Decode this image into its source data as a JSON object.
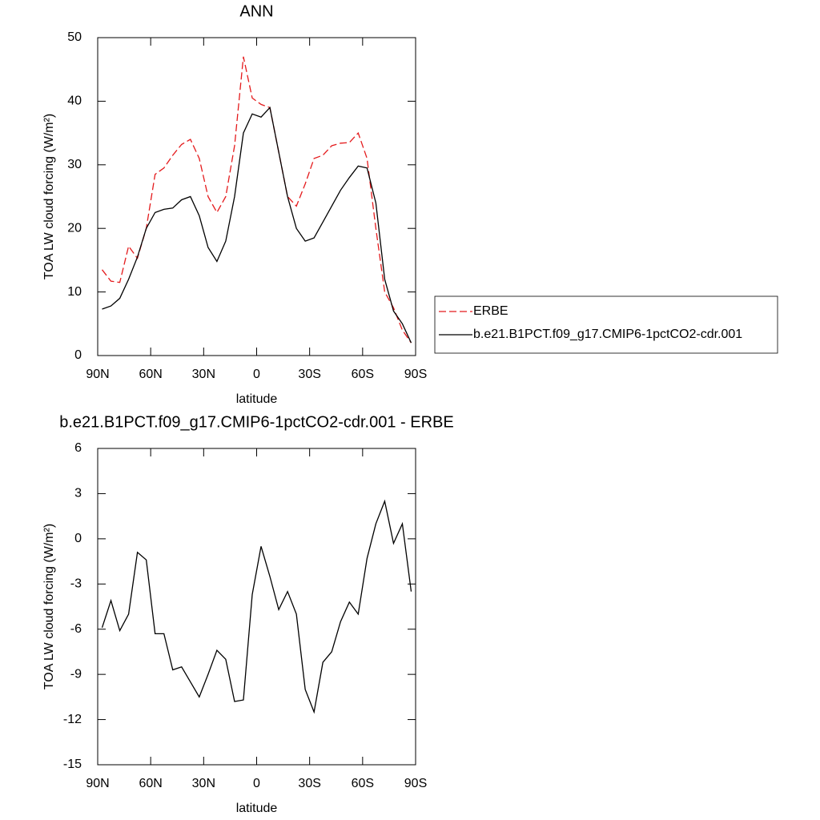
{
  "chart_data": [
    {
      "type": "line",
      "title": "ANN",
      "xlabel": "latitude",
      "ylabel": "TOA LW cloud forcing (W/m²)",
      "x": [
        87.5,
        82.5,
        77.5,
        72.5,
        67.5,
        62.5,
        57.5,
        52.5,
        47.5,
        42.5,
        37.5,
        32.5,
        27.5,
        22.5,
        17.5,
        12.5,
        7.5,
        2.5,
        -2.5,
        -7.5,
        -12.5,
        -17.5,
        -22.5,
        -27.5,
        -32.5,
        -37.5,
        -42.5,
        -47.5,
        -52.5,
        -57.5,
        -62.5,
        -67.5,
        -72.5,
        -77.5,
        -82.5,
        -87.5
      ],
      "series": [
        {
          "name": "ERBE",
          "color": "#e41a1c",
          "dashed": true,
          "values": [
            13.5,
            11.7,
            11.5,
            17.2,
            15.3,
            20,
            28.5,
            29.5,
            31.5,
            33.2,
            34,
            31,
            25,
            22.5,
            25,
            33,
            47,
            40.5,
            39.5,
            39,
            32,
            25,
            23.5,
            27,
            31,
            31.5,
            33,
            33.4,
            33.5,
            35,
            31,
            20,
            10,
            7.5,
            4,
            2
          ]
        },
        {
          "name": "b.e21.B1PCT.f09_g17.CMIP6-1pctCO2-cdr.001",
          "color": "#000000",
          "dashed": false,
          "values": [
            7.3,
            7.8,
            9,
            12,
            15.5,
            20,
            22.5,
            23,
            23.2,
            24.5,
            25,
            22,
            17,
            14.8,
            18,
            25,
            35,
            38,
            37.5,
            39,
            32,
            25,
            20,
            18,
            18.5,
            21,
            23.5,
            26,
            28,
            29.8,
            29.5,
            24,
            12,
            7,
            5,
            2
          ]
        }
      ],
      "xlim": [
        90,
        -90
      ],
      "xticks": [
        {
          "value": 90,
          "label": "90N"
        },
        {
          "value": 60,
          "label": "60N"
        },
        {
          "value": 30,
          "label": "30N"
        },
        0,
        {
          "value": -30,
          "label": "30S"
        },
        {
          "value": -60,
          "label": "60S"
        },
        {
          "value": -90,
          "label": "90S"
        }
      ],
      "ylim": [
        0,
        50
      ],
      "yticks": [
        0,
        10,
        20,
        30,
        40,
        50
      ],
      "legend": "right"
    },
    {
      "type": "line",
      "title": "b.e21.B1PCT.f09_g17.CMIP6-1pctCO2-cdr.001 - ERBE",
      "xlabel": "latitude",
      "ylabel": "TOA LW cloud forcing (W/m²)",
      "x": [
        87.5,
        82.5,
        77.5,
        72.5,
        67.5,
        62.5,
        57.5,
        52.5,
        47.5,
        42.5,
        37.5,
        32.5,
        27.5,
        22.5,
        17.5,
        12.5,
        7.5,
        2.5,
        -2.5,
        -7.5,
        -12.5,
        -17.5,
        -22.5,
        -27.5,
        -32.5,
        -37.5,
        -42.5,
        -47.5,
        -52.5,
        -57.5,
        -62.5,
        -67.5,
        -72.5,
        -77.5,
        -82.5,
        -87.5
      ],
      "values": [
        -5.9,
        -4.1,
        -6.1,
        -5,
        -0.9,
        -1.4,
        -6.3,
        -6.3,
        -8.7,
        -8.5,
        -9.5,
        -10.5,
        -9,
        -7.4,
        -8,
        -10.8,
        -10.7,
        -3.7,
        -0.5,
        -2.5,
        -4.7,
        -3.5,
        -5,
        -10,
        -11.5,
        -8.2,
        -7.5,
        -5.5,
        -4.2,
        -5,
        -1.3,
        1,
        2.5,
        -0.3,
        1,
        -3.5
      ],
      "color": "#000000",
      "xlim": [
        90,
        -90
      ],
      "xticks": [
        {
          "value": 90,
          "label": "90N"
        },
        {
          "value": 60,
          "label": "60N"
        },
        {
          "value": 30,
          "label": "30N"
        },
        0,
        {
          "value": -30,
          "label": "30S"
        },
        {
          "value": -60,
          "label": "60S"
        },
        {
          "value": -90,
          "label": "90S"
        }
      ],
      "ylim": [
        -15,
        6
      ],
      "yticks": [
        -15,
        -12,
        -9,
        -6,
        -3,
        0,
        3,
        6
      ]
    }
  ]
}
